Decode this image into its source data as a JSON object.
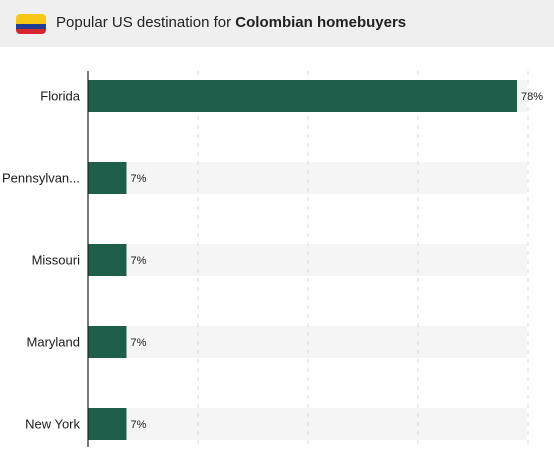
{
  "header": {
    "title_prefix": "Popular US destination for ",
    "title_bold": "Colombian homebuyers",
    "flag_icon": "colombia-flag-icon",
    "flag_colors": [
      "#f6c813",
      "#213d8f",
      "#d7262e"
    ]
  },
  "chart_data": {
    "type": "bar",
    "orientation": "horizontal",
    "title": "Popular US destination for Colombian homebuyers",
    "categories": [
      "Florida",
      "Pennsylvan...",
      "Missouri",
      "Maryland",
      "New York"
    ],
    "values": [
      78,
      7,
      7,
      7,
      7
    ],
    "value_labels": [
      "78%",
      "7%",
      "7%",
      "7%",
      "7%"
    ],
    "xlim": [
      0,
      80
    ],
    "grid": true,
    "bar_color": "#1e5e4a",
    "track_color": "#f5f5f5"
  }
}
